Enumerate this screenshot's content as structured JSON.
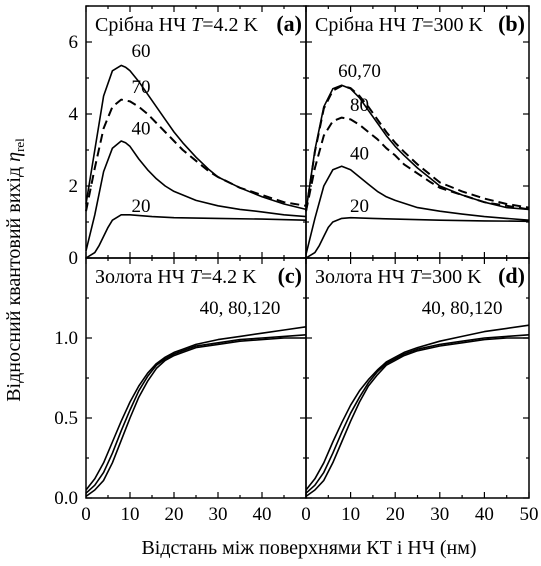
{
  "y_axis_label_main": "Відносний квантовий вихід ",
  "y_axis_label_eta": "η",
  "y_axis_label_sub": "rel",
  "x_axis_label": "Відстань між поверхнями КТ і НЧ (нм)",
  "chart_data": [
    {
      "type": "line",
      "panel": "(a)",
      "title_prefix": "Срібна НЧ ",
      "title_T": "T",
      "title_suffix": "=4.2 K",
      "letter": "(a)",
      "xlim": [
        0,
        50
      ],
      "ylim": [
        0,
        7
      ],
      "yticks": [
        0,
        2,
        4,
        6
      ],
      "ytick_labels": [
        "0",
        "2",
        "4",
        "6"
      ],
      "series": [
        {
          "label": "60",
          "style": "solid",
          "x": [
            0,
            2,
            4,
            6,
            8,
            9,
            10,
            12,
            14,
            16,
            18,
            20,
            22,
            25,
            28,
            30,
            35,
            40,
            45,
            50
          ],
          "y": [
            1.5,
            3.0,
            4.5,
            5.2,
            5.35,
            5.3,
            5.2,
            4.9,
            4.55,
            4.2,
            3.85,
            3.5,
            3.2,
            2.8,
            2.45,
            2.25,
            1.95,
            1.7,
            1.5,
            1.35
          ]
        },
        {
          "label": "70",
          "style": "dashed",
          "x": [
            0,
            2,
            4,
            6,
            8,
            10,
            12,
            14,
            16,
            18,
            20,
            22,
            25,
            28,
            30,
            35,
            40,
            45,
            50
          ],
          "y": [
            1.3,
            2.5,
            3.6,
            4.2,
            4.4,
            4.35,
            4.2,
            4.0,
            3.75,
            3.5,
            3.25,
            3.0,
            2.7,
            2.4,
            2.25,
            1.95,
            1.75,
            1.55,
            1.45
          ]
        },
        {
          "label": "40",
          "style": "solid",
          "x": [
            0,
            2,
            4,
            6,
            8,
            9,
            10,
            12,
            14,
            16,
            18,
            20,
            25,
            30,
            35,
            40,
            45,
            50
          ],
          "y": [
            0.2,
            1.2,
            2.4,
            3.05,
            3.25,
            3.2,
            3.1,
            2.75,
            2.45,
            2.2,
            2.0,
            1.85,
            1.6,
            1.45,
            1.35,
            1.28,
            1.2,
            1.15
          ]
        },
        {
          "label": "20",
          "style": "solid",
          "x": [
            0,
            2,
            3,
            4,
            5,
            6,
            8,
            10,
            15,
            20,
            30,
            40,
            50
          ],
          "y": [
            0,
            0.15,
            0.35,
            0.6,
            0.85,
            1.05,
            1.2,
            1.2,
            1.15,
            1.12,
            1.1,
            1.08,
            1.05
          ]
        }
      ]
    },
    {
      "type": "line",
      "panel": "(b)",
      "title_prefix": "Срібна НЧ ",
      "title_T": "T",
      "title_suffix": "=300 K",
      "letter": "(b)",
      "xlim": [
        0,
        50
      ],
      "ylim": [
        0,
        7
      ],
      "yticks": [
        0,
        2,
        4,
        6
      ],
      "series": [
        {
          "label": "60,70",
          "style": "solid",
          "x": [
            0,
            2,
            4,
            6,
            8,
            10,
            12,
            14,
            16,
            18,
            20,
            22,
            25,
            28,
            30,
            35,
            40,
            45,
            50
          ],
          "y": [
            1.3,
            3.0,
            4.2,
            4.7,
            4.8,
            4.7,
            4.45,
            4.1,
            3.75,
            3.4,
            3.1,
            2.85,
            2.5,
            2.2,
            2.0,
            1.75,
            1.55,
            1.4,
            1.35
          ]
        },
        {
          "label": "",
          "style": "dashed",
          "x": [
            0,
            2,
            4,
            6,
            8,
            10,
            12,
            14,
            16,
            18,
            20,
            22,
            25,
            28,
            30,
            35,
            40,
            45,
            50
          ],
          "y": [
            1.3,
            2.95,
            4.15,
            4.65,
            4.78,
            4.72,
            4.5,
            4.2,
            3.85,
            3.5,
            3.2,
            2.95,
            2.6,
            2.3,
            2.1,
            1.85,
            1.65,
            1.5,
            1.4
          ]
        },
        {
          "label": "80",
          "style": "dashed",
          "x": [
            0,
            2,
            4,
            6,
            8,
            10,
            12,
            14,
            16,
            18,
            20,
            22,
            25,
            28,
            30,
            35,
            40,
            45,
            50
          ],
          "y": [
            1.3,
            2.5,
            3.4,
            3.8,
            3.9,
            3.85,
            3.7,
            3.5,
            3.3,
            3.05,
            2.85,
            2.6,
            2.35,
            2.1,
            1.95,
            1.75,
            1.55,
            1.45,
            1.35
          ]
        },
        {
          "label": "40",
          "style": "solid",
          "x": [
            0,
            2,
            4,
            6,
            8,
            10,
            12,
            14,
            16,
            18,
            20,
            25,
            30,
            35,
            40,
            45,
            50
          ],
          "y": [
            0.1,
            1.1,
            2.0,
            2.45,
            2.55,
            2.45,
            2.25,
            2.05,
            1.85,
            1.7,
            1.6,
            1.4,
            1.3,
            1.22,
            1.15,
            1.1,
            1.05
          ]
        },
        {
          "label": "20",
          "style": "solid",
          "x": [
            0,
            2,
            3,
            4,
            5,
            6,
            8,
            10,
            15,
            20,
            30,
            40,
            50
          ],
          "y": [
            0,
            0.15,
            0.35,
            0.6,
            0.85,
            1.0,
            1.1,
            1.12,
            1.1,
            1.08,
            1.05,
            1.03,
            1.02
          ]
        }
      ]
    },
    {
      "type": "line",
      "panel": "(c)",
      "title_prefix": "Золота НЧ ",
      "title_T": "T",
      "title_suffix": "=4.2 K",
      "letter": "(c)",
      "curve_label": "40, 80,120",
      "xlim": [
        0,
        50
      ],
      "ylim": [
        0,
        1.5
      ],
      "yticks": [
        0,
        0.5,
        1.0
      ],
      "ytick_labels": [
        "0.0",
        "0.5",
        "1.0"
      ],
      "xticks": [
        0,
        10,
        20,
        30,
        40
      ],
      "xtick_labels": [
        "0",
        "10",
        "20",
        "30",
        "40"
      ],
      "series": [
        {
          "label": "40",
          "style": "solid",
          "x": [
            0,
            2,
            4,
            6,
            8,
            10,
            12,
            14,
            16,
            18,
            20,
            22,
            25,
            30,
            35,
            40,
            45,
            50
          ],
          "y": [
            0.05,
            0.12,
            0.22,
            0.35,
            0.48,
            0.6,
            0.7,
            0.78,
            0.84,
            0.88,
            0.91,
            0.93,
            0.96,
            0.99,
            1.01,
            1.03,
            1.05,
            1.07
          ]
        },
        {
          "label": "80",
          "style": "solid",
          "x": [
            0,
            2,
            4,
            6,
            8,
            10,
            12,
            14,
            16,
            18,
            20,
            22,
            25,
            30,
            35,
            40,
            45,
            50
          ],
          "y": [
            0.03,
            0.08,
            0.16,
            0.28,
            0.42,
            0.55,
            0.67,
            0.76,
            0.83,
            0.87,
            0.9,
            0.92,
            0.95,
            0.97,
            0.99,
            1.0,
            1.01,
            1.02
          ]
        },
        {
          "label": "120",
          "style": "solid",
          "x": [
            0,
            2,
            4,
            6,
            8,
            10,
            12,
            14,
            16,
            18,
            20,
            22,
            25,
            30,
            35,
            40,
            45,
            50
          ],
          "y": [
            0.01,
            0.05,
            0.11,
            0.22,
            0.36,
            0.5,
            0.63,
            0.73,
            0.81,
            0.86,
            0.89,
            0.91,
            0.94,
            0.96,
            0.98,
            0.99,
            1.0,
            1.0
          ]
        }
      ]
    },
    {
      "type": "line",
      "panel": "(d)",
      "title_prefix": "Золота НЧ ",
      "title_T": "T",
      "title_suffix": "=300 K",
      "letter": "(d)",
      "curve_label": "40, 80,120",
      "xlim": [
        0,
        50
      ],
      "ylim": [
        0,
        1.5
      ],
      "yticks": [
        0,
        0.5,
        1.0
      ],
      "xticks": [
        0,
        10,
        20,
        30,
        40,
        50
      ],
      "xtick_labels": [
        "0",
        "10",
        "20",
        "30",
        "40",
        "50"
      ],
      "series": [
        {
          "label": "40",
          "style": "solid",
          "x": [
            0,
            2,
            4,
            6,
            8,
            10,
            12,
            14,
            16,
            18,
            20,
            22,
            25,
            30,
            35,
            40,
            45,
            50
          ],
          "y": [
            0.05,
            0.12,
            0.22,
            0.35,
            0.47,
            0.58,
            0.67,
            0.74,
            0.8,
            0.85,
            0.88,
            0.91,
            0.94,
            0.98,
            1.01,
            1.04,
            1.06,
            1.08
          ]
        },
        {
          "label": "80",
          "style": "solid",
          "x": [
            0,
            2,
            4,
            6,
            8,
            10,
            12,
            14,
            16,
            18,
            20,
            22,
            25,
            30,
            35,
            40,
            45,
            50
          ],
          "y": [
            0.03,
            0.08,
            0.16,
            0.28,
            0.41,
            0.53,
            0.63,
            0.72,
            0.79,
            0.84,
            0.87,
            0.9,
            0.93,
            0.96,
            0.98,
            1.0,
            1.01,
            1.02
          ]
        },
        {
          "label": "120",
          "style": "solid",
          "x": [
            0,
            2,
            4,
            6,
            8,
            10,
            12,
            14,
            16,
            18,
            20,
            22,
            25,
            30,
            35,
            40,
            45,
            50
          ],
          "y": [
            0.01,
            0.05,
            0.11,
            0.22,
            0.35,
            0.48,
            0.6,
            0.7,
            0.77,
            0.83,
            0.86,
            0.89,
            0.92,
            0.95,
            0.97,
            0.99,
            1.0,
            1.0
          ]
        }
      ]
    }
  ]
}
